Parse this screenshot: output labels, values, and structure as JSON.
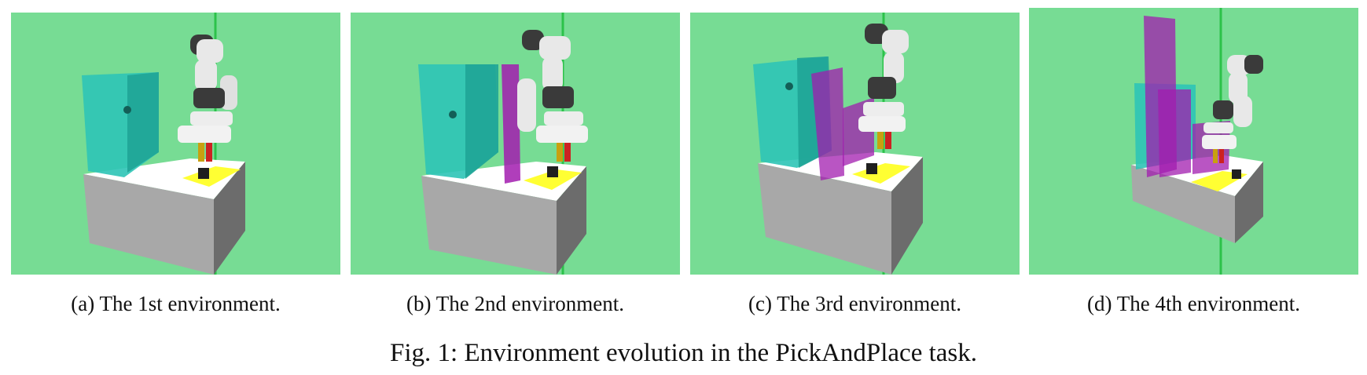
{
  "figure": {
    "caption": "Fig. 1: Environment evolution in the PickAndPlace task.",
    "panels": [
      {
        "caption": "(a) The 1st environment."
      },
      {
        "caption": "(b) The 2nd environment."
      },
      {
        "caption": "(c) The 3rd environment."
      },
      {
        "caption": "(d) The 4th environment."
      }
    ]
  },
  "colors": {
    "sky": "#77dc94",
    "table_top": "#ffffff",
    "table_front": "#a6a6a6",
    "table_side": "#6c6c6c",
    "target_zone": "#ffff33",
    "block": "#1f1f1f",
    "obstacle_cyan": "#2ec4b6",
    "obstacle_magenta": "#a21caf",
    "robot": "#e8e8e8",
    "robot_dark": "#3a3a3a",
    "guide_line": "#2cc24a"
  }
}
